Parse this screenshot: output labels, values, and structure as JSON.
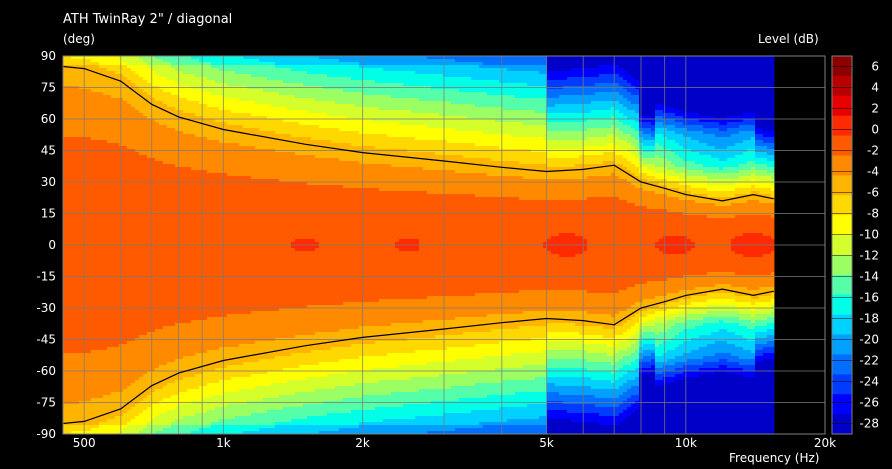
{
  "chart_data": {
    "type": "heatmap",
    "title": "ATH TwinRay 2\" / diagonal",
    "ylabel": "(deg)",
    "xlabel": "Frequency  (Hz)",
    "colorbar_label": "Level  (dB)",
    "x_scale": "log",
    "xlim": [
      450,
      20000
    ],
    "ylim": [
      -90,
      90
    ],
    "x_ticks": [
      {
        "value": 500,
        "label": "500"
      },
      {
        "value": 1000,
        "label": "1k"
      },
      {
        "value": 2000,
        "label": "2k"
      },
      {
        "value": 5000,
        "label": "5k"
      },
      {
        "value": 10000,
        "label": "10k"
      },
      {
        "value": 20000,
        "label": "20k"
      }
    ],
    "y_ticks": [
      90,
      75,
      60,
      45,
      30,
      15,
      0,
      -15,
      -30,
      -45,
      -60,
      -75,
      -90
    ],
    "grid": true,
    "data_range_hz": [
      450,
      15500
    ],
    "colorbar_range": [
      -29,
      7
    ],
    "colorbar_step": 2,
    "colorbar_labels": [
      6,
      4,
      2,
      0,
      -2,
      -4,
      -6,
      -8,
      -10,
      -12,
      -14,
      -16,
      -18,
      -20,
      -22,
      -24,
      -26,
      -28
    ],
    "colorbar_colors": [
      "#8e0000",
      "#b80000",
      "#e60000",
      "#ff2a00",
      "#ff5a00",
      "#ff8a00",
      "#ffb400",
      "#ffd800",
      "#ffff00",
      "#d4ff2a",
      "#9bff64",
      "#55ffaa",
      "#00ffe6",
      "#00d2ff",
      "#00a0ff",
      "#006eff",
      "#003cff",
      "#0000ff",
      "#0000c8"
    ],
    "sample_freqs": [
      450,
      500,
      600,
      700,
      800,
      1000,
      1500,
      2000,
      3000,
      4000,
      5000,
      6000,
      7000,
      8000,
      9000,
      10000,
      12000,
      14000,
      15500
    ],
    "level_field_note": "",
    "contour_minus6db": {
      "freq": [
        450,
        500,
        600,
        700,
        800,
        1000,
        1500,
        2000,
        3000,
        4000,
        5000,
        6000,
        7000,
        8000,
        9000,
        10000,
        12000,
        14000,
        15500
      ],
      "angle": [
        85,
        84,
        78,
        67,
        61,
        55,
        48,
        44,
        40,
        37,
        35,
        36,
        38,
        30,
        27,
        24,
        21,
        24,
        22
      ]
    },
    "series": []
  }
}
